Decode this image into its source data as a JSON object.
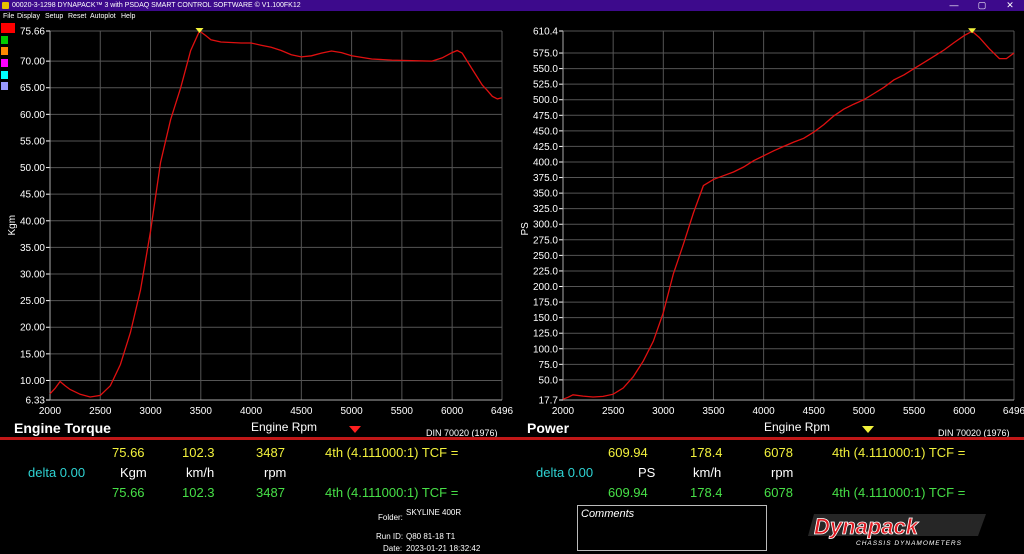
{
  "window": {
    "title": "00020-3-1298 DYNAPACK™ 3 with PSDAQ SMART CONTROL SOFTWARE © V1.100FK12",
    "minimize": "—",
    "maximize": "▢",
    "close": "✕"
  },
  "menu": [
    "File",
    "Display",
    "Setup",
    "Reset",
    "Autoplot",
    "Help"
  ],
  "swatches": [
    "#ff0000",
    "#00cc00",
    "#ff8800",
    "#ff00ff",
    "#00ffff",
    "#9999ff"
  ],
  "left_panel": {
    "title": "Engine Torque",
    "xlabel": "Engine Rpm",
    "din": "DIN 70020 (1976)",
    "arrow_color": "#ff2020",
    "row1": {
      "value": "75.66",
      "speed": "102.3",
      "rpm": "3487",
      "gear": "4th (4.111000:1) TCF ="
    },
    "delta": "delta 0.00",
    "row2": {
      "unit": "Kgm",
      "speed_unit": "km/h",
      "rpm_unit": "rpm"
    },
    "row3": {
      "value": "75.66",
      "speed": "102.3",
      "rpm": "3487",
      "gear": "4th (4.111000:1) TCF ="
    }
  },
  "right_panel": {
    "title": "Power",
    "xlabel": "Engine Rpm",
    "din": "DIN 70020 (1976)",
    "arrow_color": "#f2f23c",
    "row1": {
      "value": "609.94",
      "speed": "178.4",
      "rpm": "6078",
      "gear": "4th (4.111000:1) TCF ="
    },
    "delta": "delta 0.00",
    "row2": {
      "unit": "PS",
      "speed_unit": "km/h",
      "rpm_unit": "rpm"
    },
    "row3": {
      "value": "609.94",
      "speed": "178.4",
      "rpm": "6078",
      "gear": "4th (4.111000:1) TCF ="
    }
  },
  "info": {
    "folder_label": "Folder:",
    "folder_value": "SKYLINE 400R",
    "runid_label": "Run ID:",
    "runid_value": "Q80 81-18 T1",
    "date_label": "Date:",
    "date_value": "2023-01-21 18:32:42"
  },
  "comments_label": "Comments",
  "logo": {
    "brand": "Dynapack",
    "sub": "CHASSIS DYNAMOMETERS"
  },
  "chart_data": [
    {
      "type": "line",
      "ylabel": "Kgm",
      "xlim": [
        2000,
        6496
      ],
      "ylim": [
        6.33,
        75.66
      ],
      "xticks": [
        2000,
        2500,
        3000,
        3500,
        4000,
        4500,
        5000,
        5500,
        6000,
        6496
      ],
      "xtick_labels": [
        "2000",
        "2500",
        "3000",
        "3500",
        "4000",
        "4500",
        "5000",
        "5500",
        "6000",
        "6496"
      ],
      "yticks": [
        6.33,
        10,
        15,
        20,
        25,
        30,
        35,
        40,
        45,
        50,
        55,
        60,
        65,
        70,
        75.66
      ],
      "ytick_labels": [
        "6.33",
        "10.00",
        "15.00",
        "20.00",
        "25.00",
        "30.00",
        "35.00",
        "40.00",
        "45.00",
        "50.00",
        "55.00",
        "60.00",
        "65.00",
        "70.00",
        "75.66"
      ],
      "grid": true,
      "line_color": "#e01010",
      "cursor": {
        "x": 3487,
        "y": 75.66
      },
      "series": [
        {
          "x": [
            2000,
            2050,
            2100,
            2150,
            2200,
            2300,
            2400,
            2500,
            2600,
            2700,
            2800,
            2900,
            3000,
            3100,
            3200,
            3300,
            3400,
            3487,
            3550,
            3600,
            3700,
            3800,
            3900,
            4000,
            4100,
            4200,
            4300,
            4400,
            4500,
            4600,
            4700,
            4800,
            4900,
            5000,
            5200,
            5400,
            5600,
            5800,
            5900,
            6000,
            6050,
            6100,
            6200,
            6300,
            6350,
            6400,
            6450,
            6496
          ],
          "y": [
            7.5,
            8.5,
            9.8,
            9.0,
            8.3,
            7.4,
            6.9,
            7.2,
            9.0,
            13.0,
            19.0,
            27.0,
            38.0,
            51.0,
            59.0,
            65.0,
            72.0,
            75.66,
            74.8,
            74.0,
            73.6,
            73.5,
            73.4,
            73.4,
            73.0,
            72.6,
            72.0,
            71.2,
            70.8,
            71.0,
            71.5,
            71.9,
            71.6,
            71.0,
            70.4,
            70.2,
            70.1,
            70.0,
            70.6,
            71.6,
            72.0,
            71.5,
            68.5,
            65.5,
            64.5,
            63.4,
            62.9,
            63.1
          ]
        }
      ]
    },
    {
      "type": "line",
      "ylabel": "PS",
      "xlim": [
        2000,
        6496
      ],
      "ylim": [
        17.7,
        610.4
      ],
      "xticks": [
        2000,
        2500,
        3000,
        3500,
        4000,
        4500,
        5000,
        5500,
        6000,
        6496
      ],
      "xtick_labels": [
        "2000",
        "2500",
        "3000",
        "3500",
        "4000",
        "4500",
        "5000",
        "5500",
        "6000",
        "6496"
      ],
      "yticks": [
        17.7,
        50,
        75,
        100,
        125,
        150,
        175,
        200,
        225,
        250,
        275,
        300,
        325,
        350,
        375,
        400,
        425,
        450,
        475,
        500,
        525,
        550,
        575,
        610.4
      ],
      "ytick_labels": [
        "17.7",
        "50.0",
        "75.0",
        "100.0",
        "125.0",
        "150.0",
        "175.0",
        "200.0",
        "225.0",
        "250.0",
        "275.0",
        "300.0",
        "325.0",
        "350.0",
        "375.0",
        "400.0",
        "425.0",
        "450.0",
        "475.0",
        "500.0",
        "525.0",
        "550.0",
        "575.0",
        "610.4"
      ],
      "grid": true,
      "line_color": "#e01010",
      "cursor": {
        "x": 6078,
        "y": 609.94
      },
      "series": [
        {
          "x": [
            2000,
            2050,
            2100,
            2200,
            2300,
            2400,
            2500,
            2600,
            2700,
            2800,
            2900,
            3000,
            3100,
            3200,
            3300,
            3400,
            3500,
            3600,
            3700,
            3800,
            3900,
            4000,
            4100,
            4200,
            4300,
            4400,
            4500,
            4600,
            4700,
            4800,
            4900,
            5000,
            5100,
            5200,
            5300,
            5400,
            5500,
            5600,
            5700,
            5800,
            5900,
            6000,
            6078,
            6150,
            6250,
            6350,
            6420,
            6496
          ],
          "y": [
            19.0,
            22.0,
            26.0,
            24.0,
            22.5,
            23.5,
            27.0,
            37.0,
            55.0,
            80.0,
            112.0,
            158.0,
            220.0,
            268.0,
            318.0,
            362.0,
            372.0,
            378.0,
            384.0,
            392.0,
            402.0,
            410.0,
            418.0,
            425.0,
            432.0,
            438.0,
            448.0,
            460.0,
            474.0,
            485.0,
            493.0,
            500.0,
            510.0,
            520.0,
            532.0,
            540.0,
            550.0,
            560.0,
            570.0,
            580.0,
            592.0,
            603.0,
            609.94,
            600.0,
            582.0,
            566.0,
            566.0,
            575.0
          ]
        }
      ]
    }
  ]
}
